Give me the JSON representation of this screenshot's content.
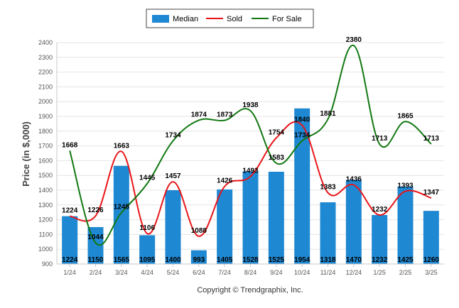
{
  "copyright": "Copyright © Trendgraphix, Inc.",
  "colors": {
    "median": "#1f88d2",
    "sold": "#e8161a",
    "for_sale": "#127812",
    "grid": "#e4e4e4"
  },
  "chart_data": {
    "type": "bar",
    "categories": [
      "1/24",
      "2/24",
      "3/24",
      "4/24",
      "5/24",
      "6/24",
      "7/24",
      "8/24",
      "9/24",
      "10/24",
      "11/24",
      "12/24",
      "1/25",
      "2/25",
      "3/25"
    ],
    "ylabel": "Price (in $,000)",
    "ylim": [
      900,
      2400
    ],
    "yticks": [
      900,
      1000,
      1100,
      1200,
      1300,
      1400,
      1500,
      1600,
      1700,
      1800,
      1900,
      2000,
      2100,
      2200,
      2300,
      2400
    ],
    "grid": true,
    "legend": "top-center",
    "series": [
      {
        "name": "Median",
        "type": "bar",
        "values": [
          1224,
          1150,
          1565,
          1095,
          1400,
          993,
          1405,
          1528,
          1525,
          1954,
          1318,
          1470,
          1232,
          1425,
          1260
        ]
      },
      {
        "name": "Sold",
        "type": "line",
        "values": [
          1224,
          1226,
          1663,
          1106,
          1457,
          1088,
          1426,
          1493,
          1754,
          1840,
          1383,
          1436,
          1232,
          1393,
          1347
        ]
      },
      {
        "name": "For Sale",
        "type": "line",
        "values": [
          1668,
          1044,
          1248,
          1445,
          1734,
          1874,
          1873,
          1938,
          1583,
          1734,
          1881,
          2380,
          1713,
          1865,
          1713
        ]
      }
    ]
  }
}
